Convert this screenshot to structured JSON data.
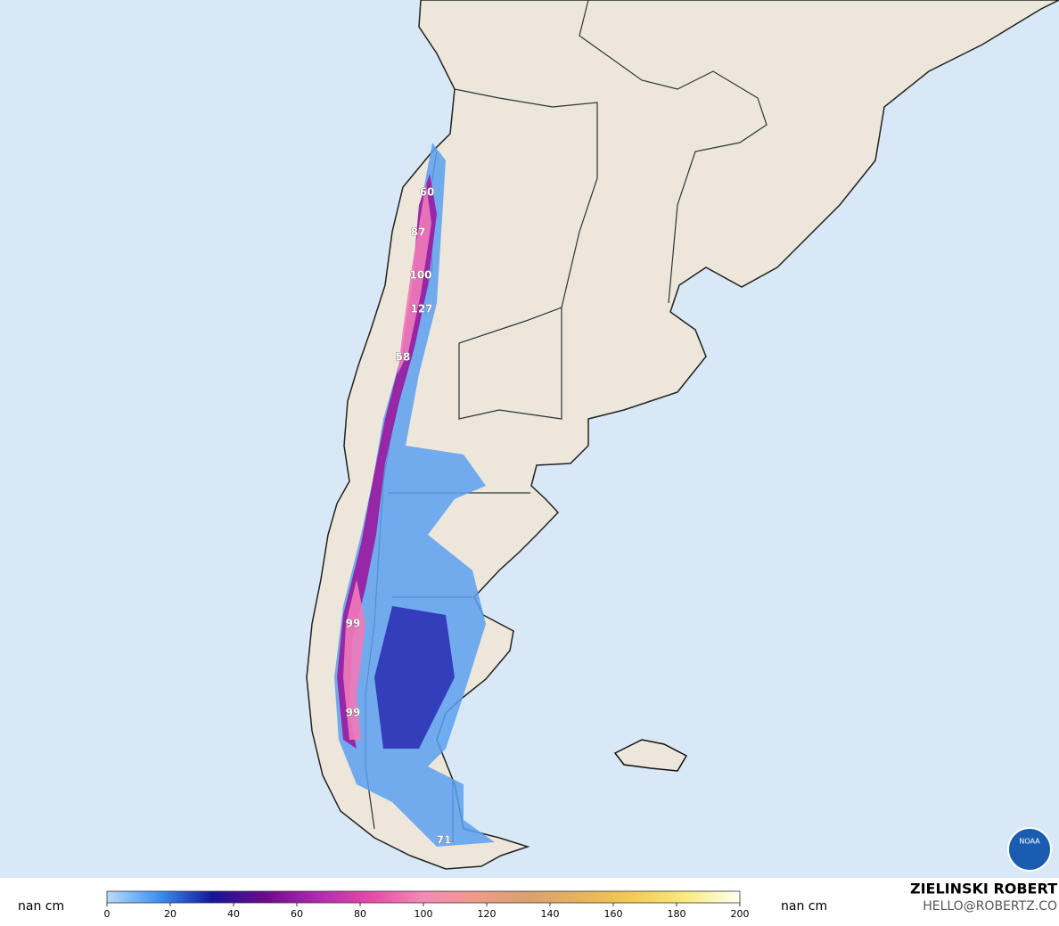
{
  "map": {
    "labels": [
      60,
      87,
      100,
      127,
      58,
      99,
      99,
      71
    ]
  },
  "colorbar": {
    "lim": [
      0,
      200
    ],
    "ticks": [
      0,
      20,
      40,
      60,
      80,
      100,
      120,
      140,
      160,
      180,
      200
    ],
    "colors": [
      "#b8dcf8",
      "#3a8ff2",
      "#16169a",
      "#6c0a8c",
      "#b02ab0",
      "#e64aa6",
      "#f48ab8",
      "#f09a8a",
      "#d9a070",
      "#e8b45c",
      "#f3cc55",
      "#f8ec80",
      "#fffff4"
    ],
    "left_label": "nan cm",
    "right_label": "nan cm"
  },
  "credit": {
    "name": "ZIELINSKI ROBERT",
    "contact": "HELLO@ROBERTZ.CO",
    "logo": "NOAA"
  }
}
